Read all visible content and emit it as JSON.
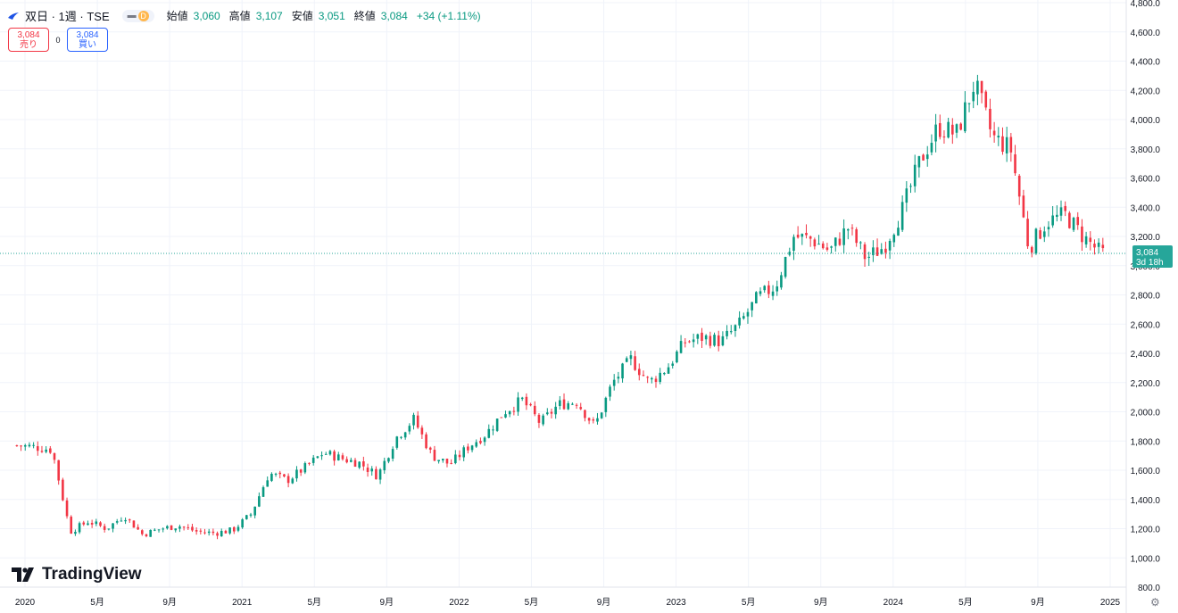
{
  "legend": {
    "title": "双日 · 1週 · TSE",
    "interval_badge": "D",
    "open_label": "始値",
    "open_value": "3,060",
    "high_label": "高値",
    "high_value": "3,107",
    "low_label": "安値",
    "low_value": "3,051",
    "close_label": "終値",
    "close_value": "3,084",
    "change": "+34 (+1.11%)"
  },
  "trade": {
    "sell_price": "3,084",
    "sell_label": "売り",
    "spread": "0",
    "buy_price": "3,084",
    "buy_label": "買い"
  },
  "price_tag": {
    "value": "3,084",
    "countdown": "3d 18h"
  },
  "brand": {
    "name": "TradingView"
  },
  "colors": {
    "up": "#089981",
    "down": "#f23645",
    "price_line": "#26a69a",
    "grid": "#f0f3fa"
  },
  "chart_data": {
    "type": "candlestick",
    "title": "",
    "ylim": [
      800,
      4800
    ],
    "y_ticks": [
      800,
      1000,
      1200,
      1400,
      1600,
      1800,
      2000,
      2200,
      2400,
      2600,
      2800,
      3000,
      3200,
      3400,
      3600,
      3800,
      4000,
      4200,
      4400,
      4600,
      4800
    ],
    "y_tick_labels": [
      "800.0",
      "1,000.0",
      "1,200.0",
      "1,400.0",
      "1,600.0",
      "1,800.0",
      "2,000.0",
      "2,200.0",
      "2,400.0",
      "2,600.0",
      "2,800.0",
      "3,000.0",
      "3,200.0",
      "3,400.0",
      "3,600.0",
      "3,800.0",
      "4,000.0",
      "4,200.0",
      "4,400.0",
      "4,600.0",
      "4,800.0"
    ],
    "x_ticks": [
      {
        "label": "2020",
        "date": "2020-01"
      },
      {
        "label": "5月",
        "date": "2020-05"
      },
      {
        "label": "9月",
        "date": "2020-09"
      },
      {
        "label": "2021",
        "date": "2021-01"
      },
      {
        "label": "5月",
        "date": "2021-05"
      },
      {
        "label": "9月",
        "date": "2021-09"
      },
      {
        "label": "2022",
        "date": "2022-01"
      },
      {
        "label": "5月",
        "date": "2022-05"
      },
      {
        "label": "9月",
        "date": "2022-09"
      },
      {
        "label": "2023",
        "date": "2023-01"
      },
      {
        "label": "5月",
        "date": "2023-05"
      },
      {
        "label": "9月",
        "date": "2023-09"
      },
      {
        "label": "2024",
        "date": "2024-01"
      },
      {
        "label": "5月",
        "date": "2024-05"
      },
      {
        "label": "9月",
        "date": "2024-09"
      },
      {
        "label": "2025",
        "date": "2025-01"
      }
    ],
    "last_price": 3084,
    "x_range": [
      "2019-12",
      "2025-03"
    ],
    "close_series": [
      [
        "2019-12",
        1770
      ],
      [
        "2020-01",
        1760
      ],
      [
        "2020-02",
        1740
      ],
      [
        "2020-03",
        1180
      ],
      [
        "2020-04",
        1250
      ],
      [
        "2020-05",
        1200
      ],
      [
        "2020-06",
        1290
      ],
      [
        "2020-07",
        1160
      ],
      [
        "2020-08",
        1200
      ],
      [
        "2020-09",
        1220
      ],
      [
        "2020-10",
        1180
      ],
      [
        "2020-11",
        1170
      ],
      [
        "2020-12",
        1190
      ],
      [
        "2021-01",
        1300
      ],
      [
        "2021-02",
        1580
      ],
      [
        "2021-03",
        1530
      ],
      [
        "2021-04",
        1620
      ],
      [
        "2021-05",
        1720
      ],
      [
        "2021-06",
        1680
      ],
      [
        "2021-07",
        1650
      ],
      [
        "2021-08",
        1560
      ],
      [
        "2021-09",
        1820
      ],
      [
        "2021-10",
        1950
      ],
      [
        "2021-11",
        1700
      ],
      [
        "2021-12",
        1640
      ],
      [
        "2022-01",
        1760
      ],
      [
        "2022-02",
        1850
      ],
      [
        "2022-03",
        2000
      ],
      [
        "2022-04",
        2080
      ],
      [
        "2022-05",
        1920
      ],
      [
        "2022-06",
        2050
      ],
      [
        "2022-07",
        2070
      ],
      [
        "2022-08",
        1900
      ],
      [
        "2022-09",
        2200
      ],
      [
        "2022-10",
        2360
      ],
      [
        "2022-11",
        2200
      ],
      [
        "2022-12",
        2300
      ],
      [
        "2023-01",
        2480
      ],
      [
        "2023-02",
        2510
      ],
      [
        "2023-03",
        2480
      ],
      [
        "2023-04",
        2600
      ],
      [
        "2023-05",
        2780
      ],
      [
        "2023-06",
        2860
      ],
      [
        "2023-07",
        3200
      ],
      [
        "2023-08",
        3180
      ],
      [
        "2023-09",
        3100
      ],
      [
        "2023-10",
        3260
      ],
      [
        "2023-11",
        3050
      ],
      [
        "2023-12",
        3130
      ],
      [
        "2024-01",
        3380
      ],
      [
        "2024-02",
        3720
      ],
      [
        "2024-03",
        3950
      ],
      [
        "2024-04",
        3900
      ],
      [
        "2024-05",
        4250
      ],
      [
        "2024-06",
        3880
      ],
      [
        "2024-07",
        3800
      ],
      [
        "2024-08",
        3120
      ],
      [
        "2024-09",
        3300
      ],
      [
        "2024-10",
        3350
      ],
      [
        "2024-11",
        3200
      ],
      [
        "2024-12",
        3084
      ]
    ]
  }
}
